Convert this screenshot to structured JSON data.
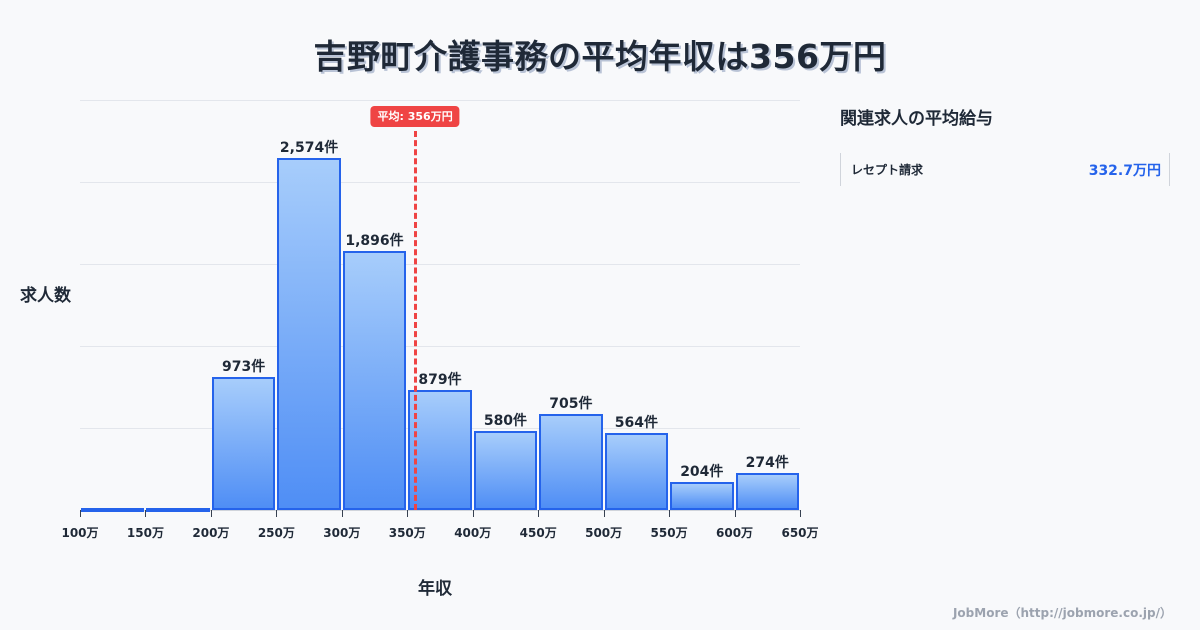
{
  "title": "吉野町介護事務の平均年収は356万円",
  "chart_data": {
    "type": "bar",
    "title": "吉野町介護事務の平均年収は356万円",
    "xlabel": "年収",
    "ylabel": "求人数",
    "bin_edges": [
      "100万",
      "150万",
      "200万",
      "250万",
      "300万",
      "350万",
      "400万",
      "450万",
      "500万",
      "550万",
      "600万",
      "650万"
    ],
    "categories": [
      "100-150万",
      "150-200万",
      "200-250万",
      "250-300万",
      "300-350万",
      "350-400万",
      "400-450万",
      "450-500万",
      "500-550万",
      "550-600万",
      "600-650万"
    ],
    "values": [
      0,
      0,
      973,
      2574,
      1896,
      879,
      580,
      705,
      564,
      204,
      274
    ],
    "value_labels": [
      "",
      "",
      "973件",
      "2,574件",
      "1,896件",
      "879件",
      "580件",
      "705件",
      "564件",
      "204件",
      "274件"
    ],
    "ylim": [
      0,
      3000
    ],
    "grid": true,
    "average": {
      "value": 356,
      "label": "平均: 356万円"
    },
    "colors": {
      "bar_fill_top": "#a7cdfb",
      "bar_fill_bottom": "#4f8ef5",
      "bar_border": "#2563eb",
      "average_line": "#ef4444"
    }
  },
  "axis": {
    "ylabel": "求人数",
    "xlabel": "年収",
    "xticks": [
      "100万",
      "150万",
      "200万",
      "250万",
      "300万",
      "350万",
      "400万",
      "450万",
      "500万",
      "550万",
      "600万",
      "650万"
    ]
  },
  "average_badge": "平均: 356万円",
  "bars": [
    {
      "label": ""
    },
    {
      "label": ""
    },
    {
      "label": "973件"
    },
    {
      "label": "2,574件"
    },
    {
      "label": "1,896件"
    },
    {
      "label": "879件"
    },
    {
      "label": "580件"
    },
    {
      "label": "705件"
    },
    {
      "label": "564件"
    },
    {
      "label": "204件"
    },
    {
      "label": "274件"
    }
  ],
  "sidebar": {
    "title": "関連求人の平均給与",
    "items": [
      {
        "label": "レセプト請求",
        "value": "332.7万円"
      }
    ]
  },
  "footer": "JobMore（http://jobmore.co.jp/）"
}
